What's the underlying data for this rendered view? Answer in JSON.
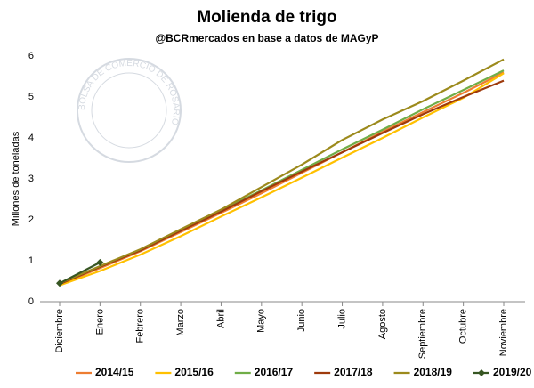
{
  "chart_data": {
    "type": "line",
    "title": "Molienda de trigo",
    "subtitle": "@BCRmercados en base a datos de MAGyP",
    "y_label": "Millones de toneladas",
    "watermark": "BOLSA DE COMERCIO DE ROSARIO",
    "categories": [
      "Diciembre",
      "Enero",
      "Febrero",
      "Marzo",
      "Abril",
      "Mayo",
      "Junio",
      "Julio",
      "Agosto",
      "Septiembre",
      "Octubre",
      "Noviembre"
    ],
    "series": [
      {
        "name": "2014/15",
        "color": "#ed7d31",
        "values": [
          0.42,
          0.82,
          1.23,
          1.7,
          2.17,
          2.65,
          3.15,
          3.65,
          4.15,
          4.63,
          5.1,
          5.6
        ]
      },
      {
        "name": "2015/16",
        "color": "#ffc000",
        "values": [
          0.4,
          0.75,
          1.15,
          1.6,
          2.08,
          2.55,
          3.03,
          3.52,
          4.0,
          4.5,
          4.98,
          5.58
        ]
      },
      {
        "name": "2016/17",
        "color": "#70ad47",
        "values": [
          0.45,
          0.85,
          1.27,
          1.75,
          2.23,
          2.72,
          3.22,
          3.72,
          4.2,
          4.7,
          5.17,
          5.65
        ]
      },
      {
        "name": "2017/18",
        "color": "#9e3a0c",
        "values": [
          0.43,
          0.85,
          1.25,
          1.73,
          2.2,
          2.7,
          3.18,
          3.65,
          4.12,
          4.58,
          5.0,
          5.4
        ]
      },
      {
        "name": "2018/19",
        "color": "#9c8a1c",
        "values": [
          0.45,
          0.87,
          1.28,
          1.77,
          2.25,
          2.8,
          3.35,
          3.95,
          4.45,
          4.9,
          5.4,
          5.92
        ]
      },
      {
        "name": "2019/20",
        "color": "#375623",
        "markers": true,
        "values": [
          0.45,
          0.96,
          null,
          null,
          null,
          null,
          null,
          null,
          null,
          null,
          null,
          null
        ]
      }
    ],
    "ylim": [
      0,
      6
    ],
    "yticks": [
      0,
      1,
      2,
      3,
      4,
      5,
      6
    ],
    "grid": false,
    "legend": "bottom"
  }
}
